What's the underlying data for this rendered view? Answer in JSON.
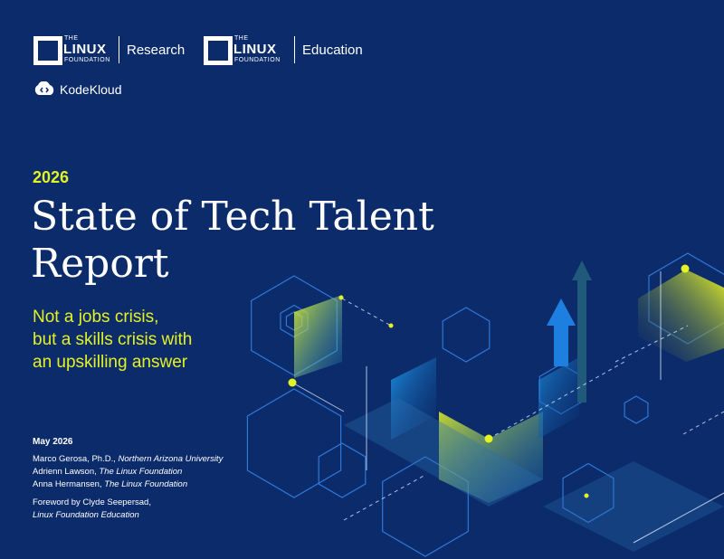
{
  "logos": [
    {
      "the": "THE",
      "linux": "LINUX",
      "foundation": "FOUNDATION",
      "unit": "Research"
    },
    {
      "the": "THE",
      "linux": "LINUX",
      "foundation": "FOUNDATION",
      "unit": "Education"
    }
  ],
  "partner": "KodeKloud",
  "year": "2026",
  "title_lines": [
    "State of Tech Talent",
    "Report"
  ],
  "subtitle_lines": [
    "Not a jobs crisis,",
    "but a skills crisis with",
    "an upskilling answer"
  ],
  "date": "May 2026",
  "authors": [
    {
      "name": "Marco Gerosa, Ph.D.,",
      "affiliation": "Northern Arizona University"
    },
    {
      "name": "Adrienn Lawson,",
      "affiliation": "The Linux Foundation"
    },
    {
      "name": "Anna Hermansen,",
      "affiliation": "The Linux Foundation"
    }
  ],
  "foreword": {
    "line": "Foreword by Clyde Seepersad,",
    "affiliation": "Linux Foundation Education"
  }
}
